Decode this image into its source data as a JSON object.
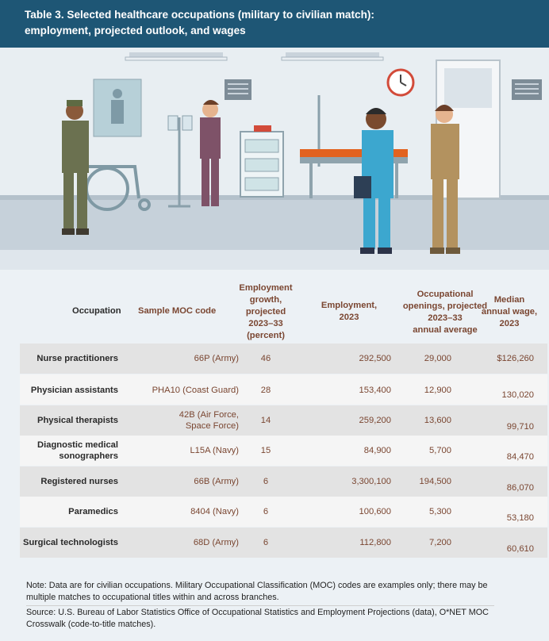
{
  "header": {
    "title_line1": "Table 3. Selected healthcare occupations (military to civilian match):",
    "title_line2": "employment, projected outlook, and wages"
  },
  "colors": {
    "header_bg": "#1e5675",
    "accent_text": "#7a4631",
    "row_shade": "#e3e3e3"
  },
  "columns": {
    "occupation": "Occupation",
    "moc": "Sample MOC code",
    "growth": [
      "Employment",
      "growth,",
      "projected",
      "2023–33",
      "(percent)"
    ],
    "employment": [
      "Employment,",
      "2023"
    ],
    "openings": [
      "Occupational",
      "openings, projected",
      "2023–33",
      "annual average"
    ],
    "wage": [
      "Median",
      "annual wage,",
      "2023"
    ]
  },
  "rows": [
    {
      "occupation": [
        "Nurse practitioners"
      ],
      "moc": [
        "66P (Army)"
      ],
      "growth": "46",
      "employment": "292,500",
      "openings": "29,000",
      "wage": "$126,260"
    },
    {
      "occupation": [
        "Physician assistants"
      ],
      "moc": [
        "PHA10 (Coast Guard)"
      ],
      "growth": "28",
      "employment": "153,400",
      "openings": "12,900",
      "wage": "130,020"
    },
    {
      "occupation": [
        "Physical therapists"
      ],
      "moc": [
        "42B (Air Force,",
        "Space Force)"
      ],
      "growth": "14",
      "employment": "259,200",
      "openings": "13,600",
      "wage": "99,710"
    },
    {
      "occupation": [
        "Diagnostic medical",
        "sonographers"
      ],
      "moc": [
        "L15A (Navy)"
      ],
      "growth": "15",
      "employment": "84,900",
      "openings": "5,700",
      "wage": "84,470"
    },
    {
      "occupation": [
        "Registered nurses"
      ],
      "moc": [
        "66B (Army)"
      ],
      "growth": "6",
      "employment": "3,300,100",
      "openings": "194,500",
      "wage": "86,070"
    },
    {
      "occupation": [
        "Paramedics"
      ],
      "moc": [
        "8404 (Navy)"
      ],
      "growth": "6",
      "employment": "100,600",
      "openings": "5,300",
      "wage": "53,180"
    },
    {
      "occupation": [
        "Surgical technologists"
      ],
      "moc": [
        "68D (Army)"
      ],
      "growth": "6",
      "employment": "112,800",
      "openings": "7,200",
      "wage": "60,610"
    }
  ],
  "note": {
    "line1": "Note: Data are for civilian occupations. Military Occupational Classification (MOC) codes are examples only; there may be",
    "line2": "multiple matches to occupational titles within and across branches."
  },
  "source": {
    "line1": "Source:  U.S. Bureau of Labor Statistics Office of Occupational Statistics and Employment Projections (data), O*NET MOC",
    "line2": "Crosswalk (code-to-title matches)."
  },
  "illustration": {
    "icons": [
      "ceiling-light-icon",
      "wall-clock-icon",
      "door-icon",
      "medical-chart-icon",
      "wheelchair-icon",
      "iv-stand-icon",
      "medical-cart-icon",
      "hospital-bed-icon",
      "soldier-figure-icon",
      "nurse-figure-icon",
      "doctor-figure-icon",
      "military-medic-figure-icon"
    ]
  }
}
